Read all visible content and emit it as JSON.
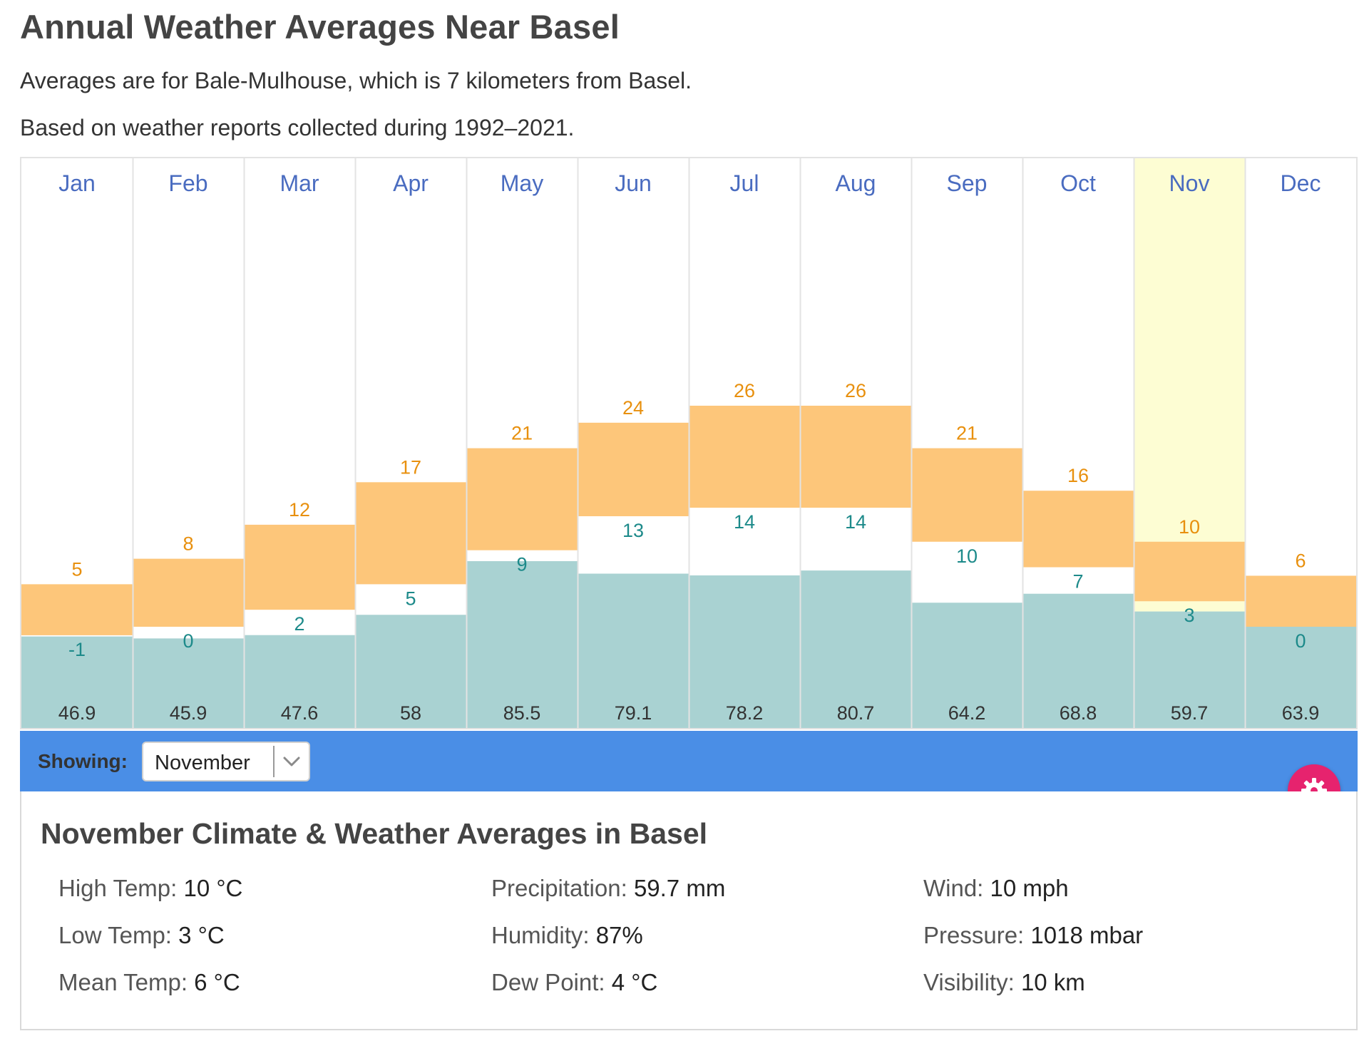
{
  "title": "Annual Weather Averages Near Basel",
  "subtitle1": "Averages are for Bale-Mulhouse, which is 7 kilometers from Basel.",
  "subtitle2": "Based on weather reports collected during 1992–2021.",
  "colors": {
    "temp_bar": "#fdc67a",
    "high_text": "#e8900e",
    "low_text": "#1d8a8a",
    "precip_bar": "#a9d2d2",
    "month_text": "#4a6cc0",
    "highlight": "#fdfdd3",
    "grid": "#e3e3e3",
    "showing_bar": "#4a8ee6",
    "gear_button": "#e6236e"
  },
  "chart_data": {
    "type": "bar",
    "categories": [
      "Jan",
      "Feb",
      "Mar",
      "Apr",
      "May",
      "Jun",
      "Jul",
      "Aug",
      "Sep",
      "Oct",
      "Nov",
      "Dec"
    ],
    "series": [
      {
        "name": "High Temp (°C)",
        "values": [
          5,
          8,
          12,
          17,
          21,
          24,
          26,
          26,
          21,
          16,
          10,
          6
        ]
      },
      {
        "name": "Low Temp (°C)",
        "values": [
          -1,
          0,
          2,
          5,
          9,
          13,
          14,
          14,
          10,
          7,
          3,
          0
        ]
      },
      {
        "name": "Precipitation (mm)",
        "values": [
          46.9,
          45.9,
          47.6,
          58,
          85.5,
          79.1,
          78.2,
          80.7,
          64.2,
          68.8,
          59.7,
          63.9
        ]
      }
    ],
    "high_labels": [
      "5",
      "8",
      "12",
      "17",
      "21",
      "24",
      "26",
      "26",
      "21",
      "16",
      "10",
      "6"
    ],
    "low_labels": [
      "-1",
      "0",
      "2",
      "5",
      "9",
      "13",
      "14",
      "14",
      "10",
      "7",
      "3",
      "0"
    ],
    "precip_labels": [
      "46.9",
      "45.9",
      "47.6",
      "58",
      "85.5",
      "79.1",
      "78.2",
      "80.7",
      "64.2",
      "68.8",
      "59.7",
      "63.9"
    ],
    "highlighted_category": "Nov",
    "temp_range": [
      -30,
      30
    ],
    "precip_range": [
      0,
      200
    ]
  },
  "selector": {
    "label": "Showing:",
    "selected": "November"
  },
  "gear_icon": "gear-icon",
  "details": {
    "title": "November Climate & Weather Averages in Basel",
    "stats": [
      {
        "label": "High Temp:",
        "value": "10 °C"
      },
      {
        "label": "Low Temp:",
        "value": "3 °C"
      },
      {
        "label": "Mean Temp:",
        "value": "6 °C"
      },
      {
        "label": "Precipitation:",
        "value": "59.7 mm"
      },
      {
        "label": "Humidity:",
        "value": "87%"
      },
      {
        "label": "Dew Point:",
        "value": "4 °C"
      },
      {
        "label": "Wind:",
        "value": "10 mph"
      },
      {
        "label": "Pressure:",
        "value": "1018 mbar"
      },
      {
        "label": "Visibility:",
        "value": "10 km"
      }
    ]
  }
}
